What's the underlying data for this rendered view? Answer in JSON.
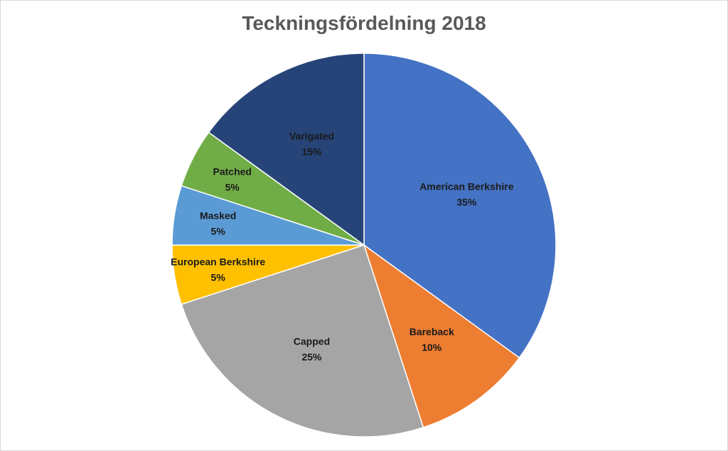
{
  "chart_data": {
    "type": "pie",
    "title": "Teckningsfördelning 2018",
    "categories": [
      "American Berkshire",
      "Bareback",
      "Capped",
      "European Berkshire",
      "Masked",
      "Patched",
      "Varigated"
    ],
    "values": [
      35,
      10,
      25,
      5,
      5,
      5,
      15
    ],
    "labels": [
      "35%",
      "10%",
      "25%",
      "5%",
      "5%",
      "5%",
      "15%"
    ],
    "colors": [
      "#4472C4",
      "#ED7D31",
      "#A5A5A5",
      "#FFC000",
      "#5B9BD5",
      "#70AD47",
      "#264478"
    ],
    "start": "top",
    "direction": "clockwise",
    "legend": "none"
  }
}
